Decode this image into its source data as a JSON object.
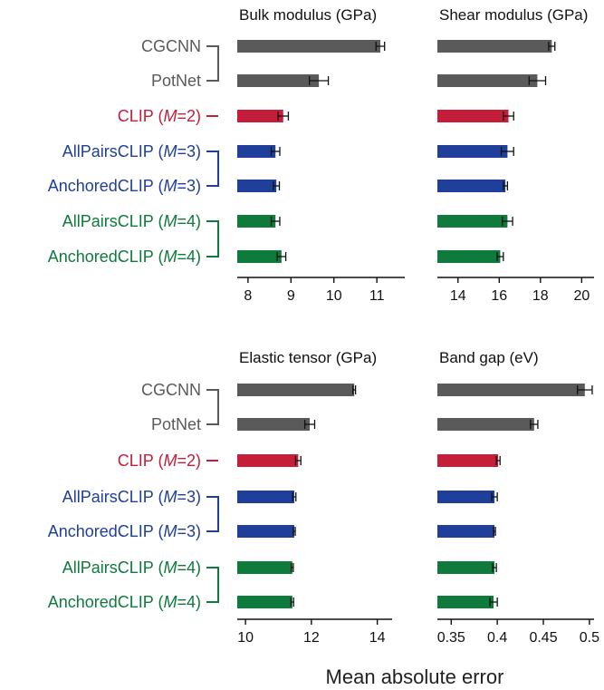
{
  "colors": {
    "baseline": "#5a5a5a",
    "clip": "#c41e3a",
    "m3": "#1f3f9a",
    "m4": "#0e7a3c"
  },
  "method_labels": [
    {
      "name": "CGCNN",
      "suffix": "",
      "color": "baseline"
    },
    {
      "name": "PotNet",
      "suffix": "",
      "color": "baseline"
    },
    {
      "name": "CLIP (",
      "suffix": "M=2)",
      "color": "clip"
    },
    {
      "name": "AllPairsCLIP (",
      "suffix": "M=3)",
      "color": "m3"
    },
    {
      "name": "AnchoredCLIP (",
      "suffix": "M=3)",
      "color": "m3"
    },
    {
      "name": "AllPairsCLIP (",
      "suffix": "M=4)",
      "color": "m4"
    },
    {
      "name": "AnchoredCLIP (",
      "suffix": "M=4)",
      "color": "m4"
    }
  ],
  "x_axis_label": "Mean absolute error",
  "chart_data": [
    {
      "type": "bar",
      "title": "Bulk modulus (GPa)",
      "categories": [
        "CGCNN",
        "PotNet",
        "CLIP (M=2)",
        "AllPairsCLIP (M=3)",
        "AnchoredCLIP (M=3)",
        "AllPairsCLIP (M=4)",
        "AnchoredCLIP (M=4)"
      ],
      "values": [
        11.08,
        9.65,
        8.82,
        8.64,
        8.66,
        8.64,
        8.78
      ],
      "errors": [
        0.1,
        0.22,
        0.12,
        0.1,
        0.07,
        0.1,
        0.1
      ],
      "xlim": [
        7.75,
        11.65
      ],
      "xticks": [
        8,
        9,
        10,
        11
      ],
      "xtick_labels": [
        "8",
        "9",
        "10",
        "11"
      ]
    },
    {
      "type": "bar",
      "title": "Shear modulus (GPa)",
      "categories": [
        "CGCNN",
        "PotNet",
        "CLIP (M=2)",
        "AllPairsCLIP (M=3)",
        "AnchoredCLIP (M=3)",
        "AllPairsCLIP (M=4)",
        "AnchoredCLIP (M=4)"
      ],
      "values": [
        18.55,
        17.85,
        16.45,
        16.4,
        16.3,
        16.4,
        16.05
      ],
      "errors": [
        0.15,
        0.4,
        0.25,
        0.3,
        0.1,
        0.25,
        0.15
      ],
      "xlim": [
        13.0,
        20.6
      ],
      "xticks": [
        14,
        16,
        18,
        20
      ],
      "xtick_labels": [
        "14",
        "16",
        "18",
        "20"
      ]
    },
    {
      "type": "bar",
      "title": "Elastic tensor (GPa)",
      "categories": [
        "CGCNN",
        "PotNet",
        "CLIP (M=2)",
        "AllPairsCLIP (M=3)",
        "AnchoredCLIP (M=3)",
        "AllPairsCLIP (M=4)",
        "AnchoredCLIP (M=4)"
      ],
      "values": [
        13.3,
        11.95,
        11.6,
        11.48,
        11.48,
        11.42,
        11.42
      ],
      "errors": [
        0.04,
        0.15,
        0.08,
        0.05,
        0.03,
        0.03,
        0.04
      ],
      "xlim": [
        9.75,
        14.45
      ],
      "xticks": [
        10,
        12,
        14
      ],
      "xtick_labels": [
        "10",
        "12",
        "14"
      ]
    },
    {
      "type": "bar",
      "title": "Band gap (eV)",
      "categories": [
        "CGCNN",
        "PotNet",
        "CLIP (M=2)",
        "AllPairsCLIP (M=3)",
        "AnchoredCLIP (M=3)",
        "AllPairsCLIP (M=4)",
        "AnchoredCLIP (M=4)"
      ],
      "values": [
        0.495,
        0.44,
        0.401,
        0.397,
        0.397,
        0.397,
        0.396
      ],
      "errors": [
        0.008,
        0.004,
        0.002,
        0.003,
        0.001,
        0.002,
        0.004
      ],
      "xlim": [
        0.335,
        0.505
      ],
      "xticks": [
        0.35,
        0.4,
        0.45,
        0.5
      ],
      "xtick_labels": [
        "0.35",
        "0.4",
        "0.45",
        "0.5"
      ]
    }
  ]
}
